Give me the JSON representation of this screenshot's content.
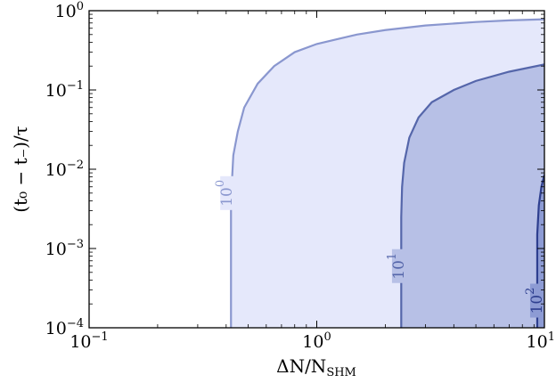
{
  "chart_data": {
    "type": "contour",
    "x_scale": "log",
    "y_scale": "log",
    "xlim": [
      0.1,
      10
    ],
    "ylim": [
      0.0001,
      1
    ],
    "xlabel": "ΔN/N_SHM",
    "ylabel": "(t₀ − t₋)/τ",
    "x_ticks": [
      {
        "value": 0.1,
        "base": "10",
        "exp": "−1"
      },
      {
        "value": 1,
        "base": "10",
        "exp": "0"
      },
      {
        "value": 10,
        "base": "10",
        "exp": "1"
      }
    ],
    "y_ticks": [
      {
        "value": 0.0001,
        "base": "10",
        "exp": "−4"
      },
      {
        "value": 0.001,
        "base": "10",
        "exp": "−3"
      },
      {
        "value": 0.01,
        "base": "10",
        "exp": "−2"
      },
      {
        "value": 0.1,
        "base": "10",
        "exp": "−1"
      },
      {
        "value": 1,
        "base": "10",
        "exp": "0"
      }
    ],
    "contour_levels": [
      {
        "base": "10",
        "exp": "0",
        "line_color": "#8a97cf",
        "fill_color": "#e5e8fb",
        "label_pos": [
          0.405,
          0.005
        ],
        "points": [
          [
            0.42,
            0.0001
          ],
          [
            0.42,
            0.0008
          ],
          [
            0.42,
            0.003
          ],
          [
            0.425,
            0.008
          ],
          [
            0.43,
            0.015
          ],
          [
            0.45,
            0.03
          ],
          [
            0.48,
            0.06
          ],
          [
            0.55,
            0.12
          ],
          [
            0.65,
            0.2
          ],
          [
            0.8,
            0.3
          ],
          [
            1.0,
            0.38
          ],
          [
            1.5,
            0.5
          ],
          [
            2.0,
            0.57
          ],
          [
            3.0,
            0.65
          ],
          [
            5.0,
            0.72
          ],
          [
            7.0,
            0.755
          ],
          [
            10,
            0.78
          ]
        ]
      },
      {
        "base": "10",
        "exp": "1",
        "line_color": "#5566aa",
        "fill_color": "#b7c0e6",
        "label_pos": [
          2.3,
          0.0006
        ],
        "points": [
          [
            2.35,
            0.0001
          ],
          [
            2.35,
            0.0025
          ],
          [
            2.37,
            0.006
          ],
          [
            2.42,
            0.012
          ],
          [
            2.55,
            0.025
          ],
          [
            2.8,
            0.045
          ],
          [
            3.2,
            0.07
          ],
          [
            4.0,
            0.1
          ],
          [
            5.0,
            0.13
          ],
          [
            7.0,
            0.17
          ],
          [
            10,
            0.21
          ]
        ]
      },
      {
        "base": "10",
        "exp": "2",
        "line_color": "#2e3f8f",
        "fill_color": "#8d9bd4",
        "label_pos": [
          9.3,
          0.00022
        ],
        "points": [
          [
            9.3,
            0.0001
          ],
          [
            9.3,
            0.0015
          ],
          [
            9.45,
            0.0035
          ],
          [
            9.7,
            0.006
          ],
          [
            10,
            0.0085
          ]
        ]
      }
    ]
  }
}
